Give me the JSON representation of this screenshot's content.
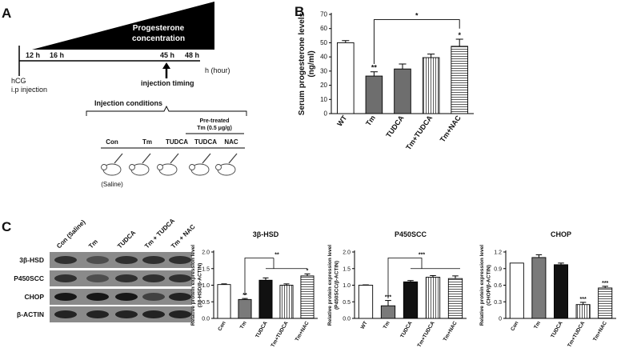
{
  "panelA": {
    "letter": "A",
    "concentration_line1": "Progesterone",
    "concentration_line2": "concentration",
    "ticks": [
      "12 h",
      "16 h",
      "45 h",
      "48 h"
    ],
    "hour_label": "h (hour)",
    "hcg_line1": "hCG",
    "hcg_line2": "i.p injection",
    "injection_timing": "injection timing",
    "injection_conditions": "Injection conditions",
    "pretreated_line1": "Pre-treated",
    "pretreated_line2": "Tm (0.5 μg/g)",
    "groups": [
      "Con",
      "Tm",
      "TUDCA",
      "TUDCA",
      "NAC"
    ],
    "saline": "(Saline)"
  },
  "panelB": {
    "letter": "B",
    "chart_data": {
      "type": "bar",
      "categories": [
        "WT",
        "Tm",
        "TUDCA",
        "Tm+TUDCA",
        "Tm+NAC"
      ],
      "values": [
        50,
        26.5,
        31.5,
        39.5,
        47.5
      ],
      "errors": [
        1.5,
        3,
        3.5,
        2.5,
        5
      ],
      "significance": [
        "",
        "**",
        "",
        "",
        "*"
      ],
      "bracket_label": "*",
      "ylabel_line1": "Serum progesterone levels",
      "ylabel_line2": "(ng/ml)",
      "ylim": [
        0,
        70
      ],
      "yticks": [
        "0",
        "10",
        "20",
        "30",
        "40",
        "50",
        "60",
        "70"
      ]
    }
  },
  "panelC": {
    "letter": "C",
    "blot_lanes": [
      "Con (Saline)",
      "Tm",
      "TUDCA",
      "Tm + TUDCA",
      "Tm + NAC"
    ],
    "blot_rows": [
      "3β-HSD",
      "P450SCC",
      "CHOP",
      "β-ACTIN"
    ],
    "charts": [
      {
        "type": "bar",
        "title": "3β-HSD",
        "ylabel_line1": "Relative protein expression level",
        "ylabel_line2": "(3β-HSD/β-ACTIN)",
        "categories": [
          "Con",
          "Tm",
          "TUDCA",
          "Tm+TUDCA",
          "Tm+NAC"
        ],
        "values": [
          1.02,
          0.57,
          1.15,
          1.0,
          1.28
        ],
        "errors": [
          0.02,
          0.03,
          0.07,
          0.04,
          0.06
        ],
        "significance": [
          "",
          "**",
          "",
          "",
          "*"
        ],
        "bracket_label": "**",
        "ylim": [
          0,
          2.0
        ],
        "yticks": [
          "0.0",
          "0.5",
          "1.0",
          "1.5",
          "2.0"
        ]
      },
      {
        "type": "bar",
        "title": "P450SCC",
        "ylabel_line1": "Relative protein expression level",
        "ylabel_line2": "(P450SCC/β-ACTIN)",
        "categories": [
          "WT",
          "Tm",
          "TUDCA",
          "Tm+TUDCA",
          "Tm+NAC"
        ],
        "values": [
          1.0,
          0.38,
          1.1,
          1.24,
          1.2
        ],
        "errors": [
          0.01,
          0.16,
          0.04,
          0.05,
          0.08
        ],
        "significance": [
          "",
          "***",
          "",
          "",
          ""
        ],
        "bracket_label": "***",
        "ylim": [
          0,
          2.0
        ],
        "yticks": [
          "0.0",
          "0.5",
          "1.0",
          "1.5",
          "2.0"
        ]
      },
      {
        "type": "bar",
        "title": "CHOP",
        "ylabel_line1": "Relative protein expression level",
        "ylabel_line2": "(CHOP/β-ACTIN)",
        "categories": [
          "Con",
          "Tm",
          "TUDCA",
          "Tm+TUDCA",
          "Tm+NAC"
        ],
        "values": [
          1.0,
          1.1,
          0.97,
          0.25,
          0.55
        ],
        "errors": [
          0.0,
          0.05,
          0.03,
          0.04,
          0.03
        ],
        "significance": [
          "",
          "",
          "",
          "***",
          "***"
        ],
        "ylim": [
          0,
          1.2
        ],
        "yticks": [
          "0",
          "0.3",
          "0.6",
          "0.9",
          "1.2"
        ]
      }
    ]
  }
}
